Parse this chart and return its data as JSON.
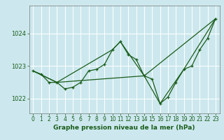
{
  "title": "Graphe pression niveau de la mer (hPa)",
  "bg_color": "#cce8ee",
  "grid_color": "#ffffff",
  "line_color": "#1a5c1a",
  "xlim": [
    -0.5,
    23.5
  ],
  "ylim": [
    1021.55,
    1024.85
  ],
  "yticks": [
    1022,
    1023,
    1024
  ],
  "xticks": [
    0,
    1,
    2,
    3,
    4,
    5,
    6,
    7,
    8,
    9,
    10,
    11,
    12,
    13,
    14,
    15,
    16,
    17,
    18,
    19,
    20,
    21,
    22,
    23
  ],
  "series_detail": {
    "x": [
      0,
      1,
      2,
      3,
      4,
      5,
      6,
      7,
      8,
      9,
      10,
      11,
      12,
      13,
      14,
      15,
      16,
      17,
      18,
      19,
      20,
      21,
      22,
      23
    ],
    "y": [
      1022.85,
      1022.75,
      1022.5,
      1022.5,
      1022.3,
      1022.35,
      1022.5,
      1022.85,
      1022.9,
      1023.05,
      1023.5,
      1023.75,
      1023.35,
      1023.2,
      1022.7,
      1022.6,
      1021.85,
      1022.05,
      1022.5,
      1022.9,
      1023.0,
      1023.5,
      1023.85,
      1024.45
    ]
  },
  "series_upper": {
    "x": [
      0,
      3,
      10,
      11,
      14,
      23
    ],
    "y": [
      1022.85,
      1022.5,
      1023.5,
      1023.75,
      1022.7,
      1024.45
    ]
  },
  "series_lower": {
    "x": [
      0,
      3,
      14,
      16,
      19,
      23
    ],
    "y": [
      1022.85,
      1022.5,
      1022.7,
      1021.85,
      1022.9,
      1024.45
    ]
  },
  "tick_fontsize": 5.5,
  "ylabel_fontsize": 6.0,
  "xlabel_fontsize": 6.5
}
